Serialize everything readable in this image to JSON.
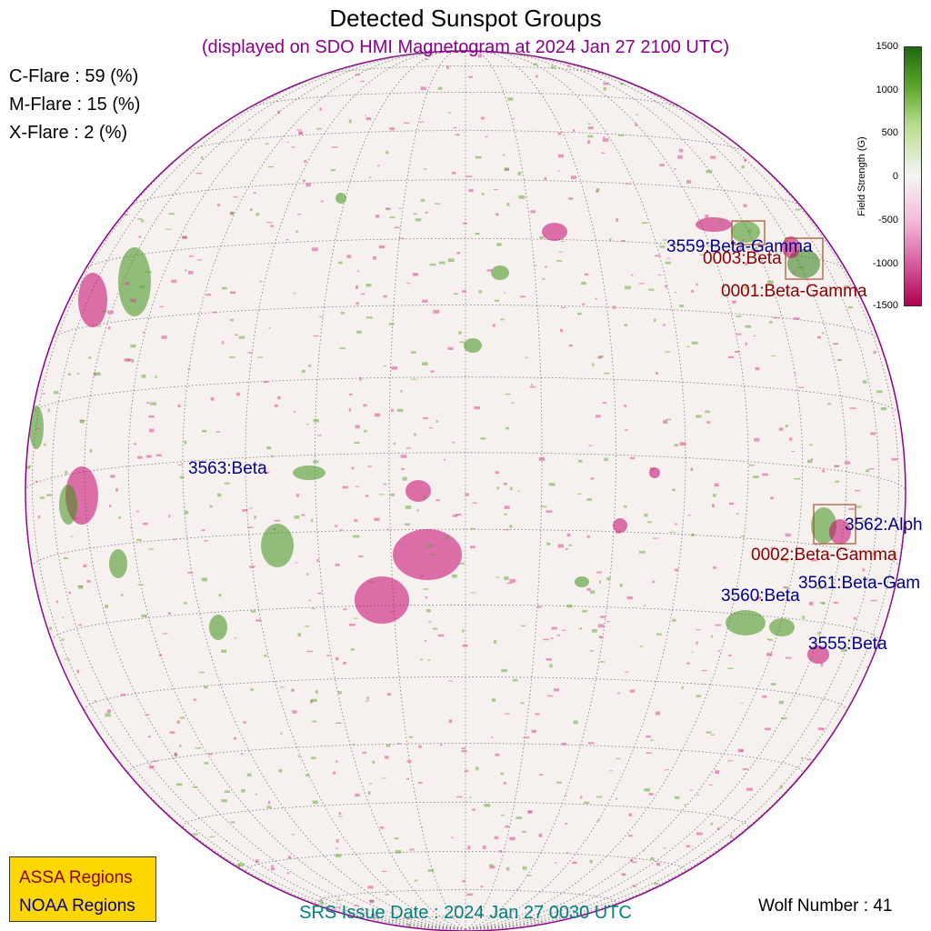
{
  "title": "Detected Sunspot Groups",
  "subtitle": "(displayed on SDO HMI Magnetogram at 2024 Jan 27 2100 UTC)",
  "flare_probabilities": {
    "c_flare": "C-Flare : 59 (%)",
    "m_flare": "M-Flare : 15 (%)",
    "x_flare": "X-Flare :  2 (%)"
  },
  "colorbar": {
    "label": "Field Strength (G)",
    "ticks": [
      "1500",
      "1000",
      "500",
      "0",
      "-500",
      "-1000",
      "-1500"
    ],
    "colors": {
      "positive": "#1f6a0f",
      "zero": "#f5f5f5",
      "negative": "#b0004d"
    }
  },
  "noaa_regions": [
    {
      "label": "3559:Beta-Gamma"
    },
    {
      "label": "3563:Beta"
    },
    {
      "label": "3562:Alph"
    },
    {
      "label": "3561:Beta-Gam"
    },
    {
      "label": "3560:Beta"
    },
    {
      "label": "3555:Beta"
    }
  ],
  "assa_regions": [
    {
      "label": "0003:Beta"
    },
    {
      "label": "0001:Beta-Gamma"
    },
    {
      "label": "0002:Beta-Gamma"
    }
  ],
  "legend": {
    "assa": "ASSA Regions",
    "noaa": "NOAA Regions",
    "colors": {
      "assa": "#8b0000",
      "noaa": "#00008b",
      "background": "#ffd700"
    }
  },
  "srs_issue": "SRS Issue Date : 2024 Jan 27 0030 UTC",
  "wolf_number": "Wolf Number : 41"
}
